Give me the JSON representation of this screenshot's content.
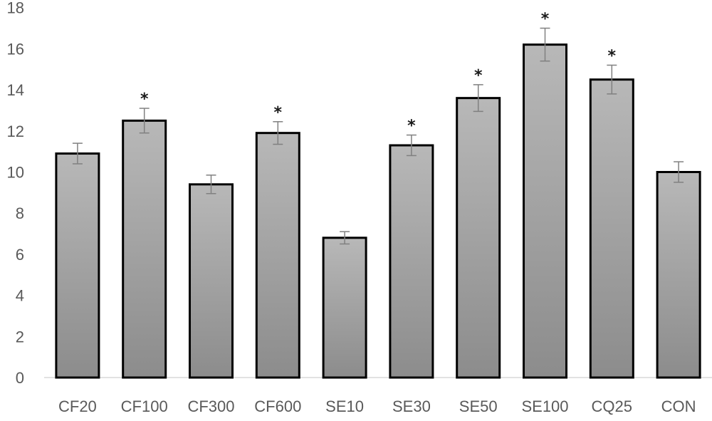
{
  "chart_data": {
    "type": "bar",
    "title": "",
    "xlabel": "",
    "ylabel": "",
    "ylim": [
      0,
      18
    ],
    "yticks": [
      0,
      2,
      4,
      6,
      8,
      10,
      12,
      14,
      16,
      18
    ],
    "categories": [
      "CF20",
      "CF100",
      "CF300",
      "CF600",
      "SE10",
      "SE30",
      "SE50",
      "SE100",
      "CQ25",
      "CON"
    ],
    "values": [
      10.9,
      12.5,
      9.4,
      11.9,
      6.8,
      11.3,
      13.6,
      16.2,
      14.5,
      10.0
    ],
    "errors": [
      0.5,
      0.6,
      0.45,
      0.55,
      0.3,
      0.5,
      0.65,
      0.8,
      0.7,
      0.5
    ],
    "annotations": [
      "",
      "*",
      "",
      "*",
      "",
      "*",
      "*",
      "*",
      "*",
      ""
    ],
    "grid": false,
    "legend": "none",
    "bar_color": "#a6a6a6",
    "bar_edge_color": "#000000",
    "error_bar_color": "#808080"
  }
}
